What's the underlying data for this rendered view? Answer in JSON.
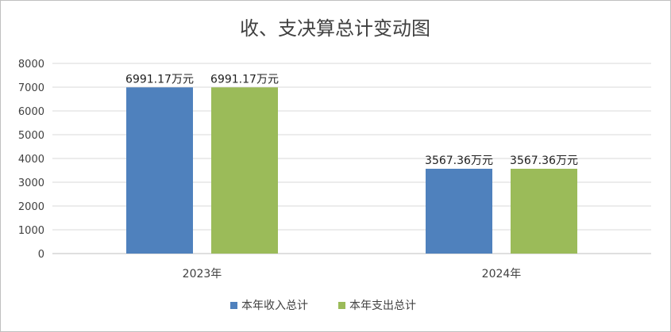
{
  "chart_data": {
    "type": "bar",
    "title": "收、支决算总计变动图",
    "xlabel": "",
    "ylabel": "",
    "categories": [
      "2023年",
      "2024年"
    ],
    "series": [
      {
        "name": "本年收入总计",
        "values": [
          6991.17,
          3567.36
        ],
        "color": "#4f81bd",
        "labels": [
          "6991.17万元",
          "3567.36万元"
        ]
      },
      {
        "name": "本年支出总计",
        "values": [
          6991.17,
          3567.36
        ],
        "color": "#9bbb59",
        "labels": [
          "6991.17万元",
          "3567.36万元"
        ]
      }
    ],
    "ylim": [
      0,
      8000
    ],
    "yticks": [
      "0",
      "1000",
      "2000",
      "3000",
      "4000",
      "5000",
      "6000",
      "7000",
      "8000"
    ],
    "grid": true,
    "legend": "bottom",
    "colors": {
      "grid": "#d9d9d9",
      "axis": "#bfbfbf",
      "border": "#bfbfbf"
    }
  }
}
